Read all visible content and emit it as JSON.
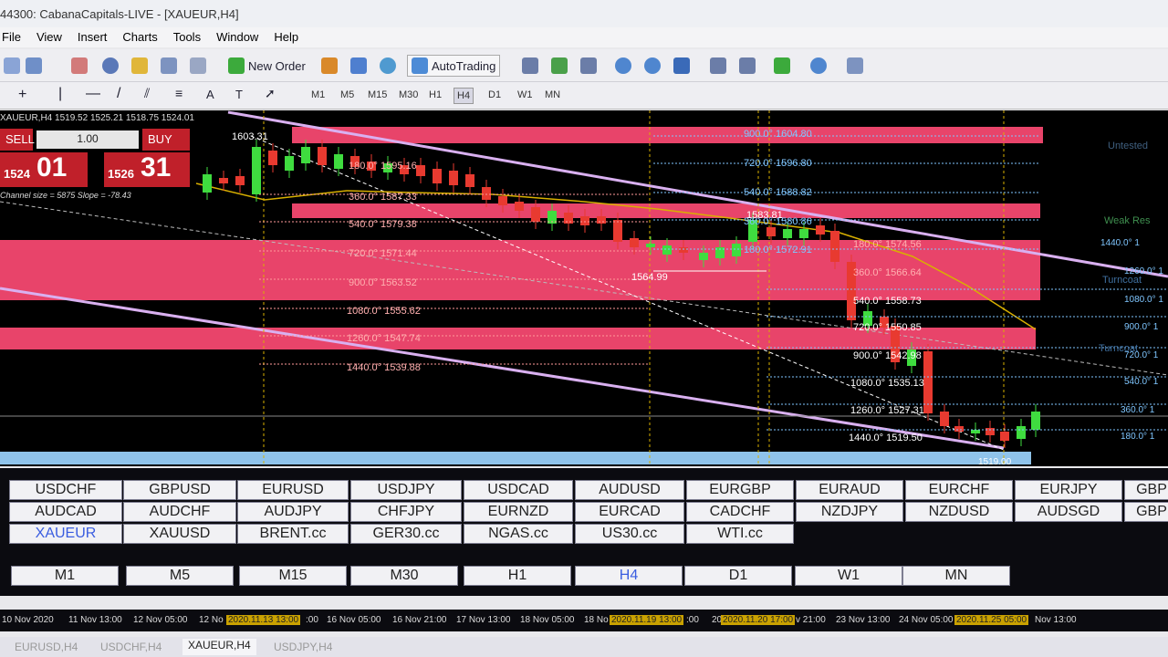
{
  "window": {
    "title": "44300: CabanaCapitals-LIVE - [XAUEUR,H4]"
  },
  "menu": [
    "File",
    "View",
    "Insert",
    "Charts",
    "Tools",
    "Window",
    "Help"
  ],
  "toolbar": {
    "new_order": "New Order",
    "autotrading": "AutoTrading",
    "draw_text": "A",
    "draw_label": "T"
  },
  "timeframes_toolbar": [
    "M1",
    "M5",
    "M15",
    "M30",
    "H1",
    "H4",
    "D1",
    "W1",
    "MN"
  ],
  "active_timeframe": "H4",
  "chart": {
    "ohlc_header": "XAUEUR,H4  1519.52 1525.21 1518.75 1524.01",
    "sell_label": "SELL",
    "buy_label": "BUY",
    "lot_value": "1.00",
    "bid_small": "1524",
    "bid_big": "01",
    "ask_small": "1526",
    "ask_big": "31",
    "channel_info": "Channel size = 5875 Slope = -78.43",
    "price_labels": {
      "top_high": "1603.31",
      "low_mid": "1564.99",
      "mid_high": "1583.81",
      "bottom_low": "1519.00"
    },
    "left_levels": [
      "180.0° 1595.16",
      "360.0° 1587.33",
      "540.0° 1579.38",
      "720.0° 1571.44",
      "900.0° 1563.52",
      "1080.0° 1555.62",
      "1260.0° 1547.74",
      "1440.0° 1539.88"
    ],
    "mid_levels": [
      "900.0° 1604.80",
      "720.0° 1596.80",
      "540.0° 1588.82",
      "360.0° 1580.86",
      "180.0° 1572.91"
    ],
    "right_levels": [
      "180.0° 1574.56",
      "360.0° 1566.64",
      "540.0° 1558.73",
      "720.0° 1550.85",
      "900.0° 1542.98",
      "1080.0° 1535.13",
      "1260.0° 1527.31",
      "1440.0° 1519.50"
    ],
    "far_right_levels": [
      "1440.0° 1",
      "1260.0° 1",
      "1080.0° 1",
      "900.0° 1",
      "720.0° 1",
      "540.0° 1",
      "360.0° 1",
      "180.0° 1"
    ],
    "far_right_labels": [
      "Untested",
      "Weak Res",
      "Turncoat",
      "Turncoat"
    ]
  },
  "symbols": [
    [
      "USDCHF",
      "GBPUSD",
      "EURUSD",
      "USDJPY",
      "USDCAD",
      "AUDUSD",
      "EURGBP",
      "EURAUD",
      "EURCHF",
      "EURJPY",
      "GBP"
    ],
    [
      "AUDCAD",
      "AUDCHF",
      "AUDJPY",
      "CHFJPY",
      "EURNZD",
      "EURCAD",
      "CADCHF",
      "NZDJPY",
      "NZDUSD",
      "AUDSGD",
      "GBP"
    ],
    [
      "XAUEUR",
      "XAUUSD",
      "BRENT.cc",
      "GER30.cc",
      "NGAS.cc",
      "US30.cc",
      "WTI.cc"
    ]
  ],
  "active_symbol": "XAUEUR",
  "timeframe_buttons": [
    "M1",
    "M5",
    "M15",
    "M30",
    "H1",
    "H4",
    "D1",
    "W1",
    "MN"
  ],
  "time_axis": [
    "10 Nov 2020",
    "11 Nov 13:00",
    "12 Nov 05:00",
    "12 No",
    "2020.11.13 13:00",
    ":00",
    "16 Nov 05:00",
    "16 Nov 21:00",
    "17 Nov 13:00",
    "18 Nov 05:00",
    "18 No",
    "2020.11.19 13:00",
    ":00",
    "20",
    "2020.11.20 17:00",
    "v 21:00",
    "23 Nov 13:00",
    "24 Nov 05:00",
    "2020.11.25 05:00",
    "Nov 13:00"
  ],
  "tabs": [
    "EURUSD,H4",
    "USDCHF,H4",
    "XAUEUR,H4",
    "USDJPY,H4"
  ],
  "active_tab": "XAUEUR,H4",
  "colors": {
    "zone": "#e8446a",
    "candle_up": "#3fdc3f",
    "candle_down": "#e83a30",
    "ma_line": "#d9b000",
    "channel": "#d9b0f0"
  }
}
